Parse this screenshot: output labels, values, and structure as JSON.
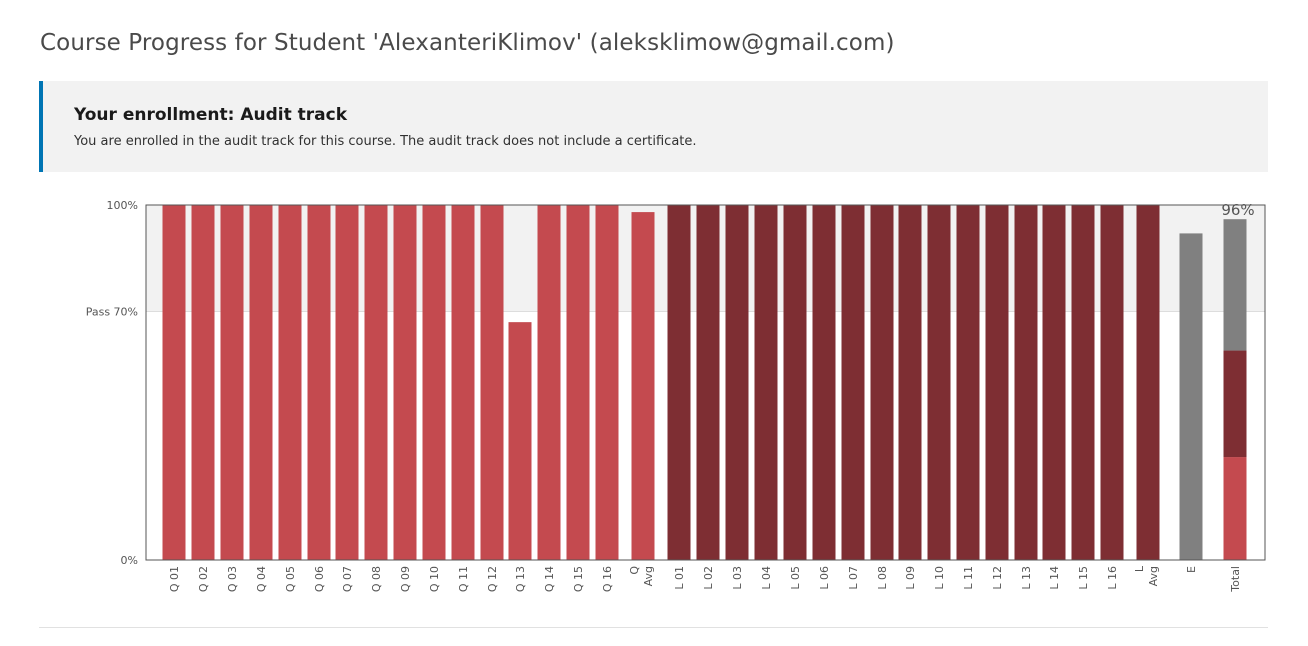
{
  "page": {
    "title": "Course Progress for Student 'AlexanteriKlimov' (aleksklimow@gmail.com)"
  },
  "enrollment": {
    "title": "Your enrollment: Audit track",
    "message": "You are enrolled in the audit track for this course. The audit track does not include a certificate."
  },
  "colors": {
    "quiz": "#c44a4f",
    "lab": "#7e2e33",
    "exam": "#808080",
    "pass_band": "#f2f2f2",
    "frame": "#555555"
  },
  "chart_data": {
    "type": "bar",
    "categories": [
      "Q 01",
      "Q 02",
      "Q 03",
      "Q 04",
      "Q 05",
      "Q 06",
      "Q 07",
      "Q 08",
      "Q 09",
      "Q 10",
      "Q 11",
      "Q 12",
      "Q 13",
      "Q 14",
      "Q 15",
      "Q 16",
      "Q Avg",
      "L 01",
      "L 02",
      "L 03",
      "L 04",
      "L 05",
      "L 06",
      "L 07",
      "L 08",
      "L 09",
      "L 10",
      "L 11",
      "L 12",
      "L 13",
      "L 14",
      "L 15",
      "L 16",
      "L Avg",
      "E",
      "Total"
    ],
    "bars": [
      {
        "label": "Q 01",
        "value": 100,
        "group": "quiz"
      },
      {
        "label": "Q 02",
        "value": 100,
        "group": "quiz"
      },
      {
        "label": "Q 03",
        "value": 100,
        "group": "quiz"
      },
      {
        "label": "Q 04",
        "value": 100,
        "group": "quiz"
      },
      {
        "label": "Q 05",
        "value": 100,
        "group": "quiz"
      },
      {
        "label": "Q 06",
        "value": 100,
        "group": "quiz"
      },
      {
        "label": "Q 07",
        "value": 100,
        "group": "quiz"
      },
      {
        "label": "Q 08",
        "value": 100,
        "group": "quiz"
      },
      {
        "label": "Q 09",
        "value": 100,
        "group": "quiz"
      },
      {
        "label": "Q 10",
        "value": 100,
        "group": "quiz"
      },
      {
        "label": "Q 11",
        "value": 100,
        "group": "quiz"
      },
      {
        "label": "Q 12",
        "value": 100,
        "group": "quiz"
      },
      {
        "label": "Q 13",
        "value": 67,
        "group": "quiz"
      },
      {
        "label": "Q 14",
        "value": 100,
        "group": "quiz"
      },
      {
        "label": "Q 15",
        "value": 100,
        "group": "quiz"
      },
      {
        "label": "Q 16",
        "value": 100,
        "group": "quiz"
      },
      {
        "label": "Q Avg",
        "value": 98,
        "group": "quiz"
      },
      {
        "label": "L 01",
        "value": 100,
        "group": "lab"
      },
      {
        "label": "L 02",
        "value": 100,
        "group": "lab"
      },
      {
        "label": "L 03",
        "value": 100,
        "group": "lab"
      },
      {
        "label": "L 04",
        "value": 100,
        "group": "lab"
      },
      {
        "label": "L 05",
        "value": 100,
        "group": "lab"
      },
      {
        "label": "L 06",
        "value": 100,
        "group": "lab"
      },
      {
        "label": "L 07",
        "value": 100,
        "group": "lab"
      },
      {
        "label": "L 08",
        "value": 100,
        "group": "lab"
      },
      {
        "label": "L 09",
        "value": 100,
        "group": "lab"
      },
      {
        "label": "L 10",
        "value": 100,
        "group": "lab"
      },
      {
        "label": "L 11",
        "value": 100,
        "group": "lab"
      },
      {
        "label": "L 12",
        "value": 100,
        "group": "lab"
      },
      {
        "label": "L 13",
        "value": 100,
        "group": "lab"
      },
      {
        "label": "L 14",
        "value": 100,
        "group": "lab"
      },
      {
        "label": "L 15",
        "value": 100,
        "group": "lab"
      },
      {
        "label": "L 16",
        "value": 100,
        "group": "lab"
      },
      {
        "label": "L Avg",
        "value": 100,
        "group": "lab"
      },
      {
        "label": "E",
        "value": 92,
        "group": "exam"
      }
    ],
    "total": {
      "label": "Total",
      "value_label": "96%",
      "segments": [
        {
          "group": "quiz",
          "value": 29
        },
        {
          "group": "lab",
          "value": 30
        },
        {
          "group": "exam",
          "value": 37
        }
      ]
    },
    "y_ticks": [
      {
        "value": 0,
        "label": "0%"
      },
      {
        "value": 70,
        "label": "Pass 70%"
      },
      {
        "value": 100,
        "label": "100%"
      }
    ],
    "ylim": [
      0,
      100
    ],
    "pass_threshold": 70,
    "grid": false,
    "legend": "none"
  }
}
